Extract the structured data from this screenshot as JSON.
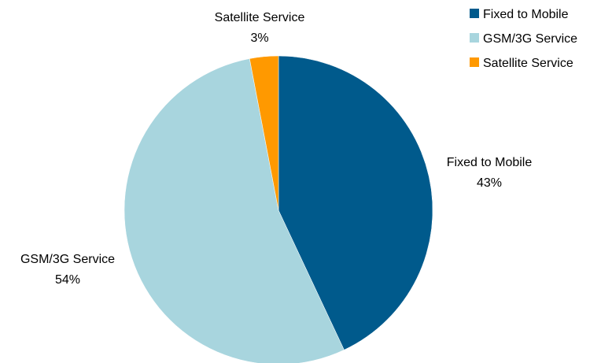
{
  "chart_data": {
    "type": "pie",
    "title": "",
    "legend_position": "top-right",
    "slices": [
      {
        "label": "Fixed to Mobile",
        "value": 43,
        "value_label": "43%",
        "color": "#005a8c"
      },
      {
        "label": "GSM/3G Service",
        "value": 54,
        "value_label": "54%",
        "color": "#a8d5de"
      },
      {
        "label": "Satellite Service",
        "value": 3,
        "value_label": "3%",
        "color": "#ff9900"
      }
    ],
    "legend": [
      {
        "label": "Fixed to Mobile",
        "color": "#005a8c"
      },
      {
        "label": "GSM/3G Service",
        "color": "#a8d5de"
      },
      {
        "label": "Satellite Service",
        "color": "#ff9900"
      }
    ]
  }
}
